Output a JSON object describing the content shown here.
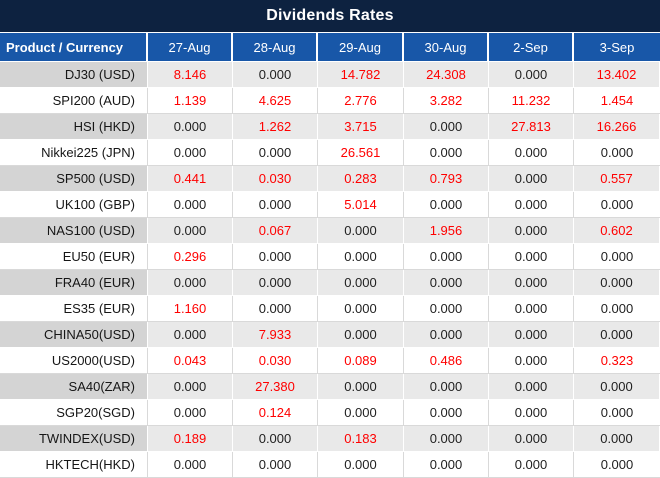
{
  "title": "Dividends Rates",
  "chart_data": {
    "type": "table",
    "title": "Dividends Rates",
    "columns": [
      "Product / Currency",
      "27-Aug",
      "28-Aug",
      "29-Aug",
      "30-Aug",
      "2-Sep",
      "3-Sep"
    ],
    "rows": [
      {
        "product": "DJ30 (USD)",
        "values": [
          "8.146",
          "0.000",
          "14.782",
          "24.308",
          "0.000",
          "13.402"
        ]
      },
      {
        "product": "SPI200 (AUD)",
        "values": [
          "1.139",
          "4.625",
          "2.776",
          "3.282",
          "11.232",
          "1.454"
        ]
      },
      {
        "product": "HSI (HKD)",
        "values": [
          "0.000",
          "1.262",
          "3.715",
          "0.000",
          "27.813",
          "16.266"
        ]
      },
      {
        "product": "Nikkei225 (JPN)",
        "values": [
          "0.000",
          "0.000",
          "26.561",
          "0.000",
          "0.000",
          "0.000"
        ]
      },
      {
        "product": "SP500 (USD)",
        "values": [
          "0.441",
          "0.030",
          "0.283",
          "0.793",
          "0.000",
          "0.557"
        ]
      },
      {
        "product": "UK100 (GBP)",
        "values": [
          "0.000",
          "0.000",
          "5.014",
          "0.000",
          "0.000",
          "0.000"
        ]
      },
      {
        "product": "NAS100 (USD)",
        "values": [
          "0.000",
          "0.067",
          "0.000",
          "1.956",
          "0.000",
          "0.602"
        ]
      },
      {
        "product": "EU50 (EUR)",
        "values": [
          "0.296",
          "0.000",
          "0.000",
          "0.000",
          "0.000",
          "0.000"
        ]
      },
      {
        "product": "FRA40 (EUR)",
        "values": [
          "0.000",
          "0.000",
          "0.000",
          "0.000",
          "0.000",
          "0.000"
        ]
      },
      {
        "product": "ES35 (EUR)",
        "values": [
          "1.160",
          "0.000",
          "0.000",
          "0.000",
          "0.000",
          "0.000"
        ]
      },
      {
        "product": "CHINA50(USD)",
        "values": [
          "0.000",
          "7.933",
          "0.000",
          "0.000",
          "0.000",
          "0.000"
        ]
      },
      {
        "product": "US2000(USD)",
        "values": [
          "0.043",
          "0.030",
          "0.089",
          "0.486",
          "0.000",
          "0.323"
        ]
      },
      {
        "product": "SA40(ZAR)",
        "values": [
          "0.000",
          "27.380",
          "0.000",
          "0.000",
          "0.000",
          "0.000"
        ]
      },
      {
        "product": "SGP20(SGD)",
        "values": [
          "0.000",
          "0.124",
          "0.000",
          "0.000",
          "0.000",
          "0.000"
        ]
      },
      {
        "product": "TWINDEX(USD)",
        "values": [
          "0.189",
          "0.000",
          "0.183",
          "0.000",
          "0.000",
          "0.000"
        ]
      },
      {
        "product": "HKTECH(HKD)",
        "values": [
          "0.000",
          "0.000",
          "0.000",
          "0.000",
          "0.000",
          "0.000"
        ]
      }
    ],
    "value_color_rule": "non-zero values rendered red, zero values black",
    "layout": {
      "alternate_row_shading": "odd rows gray, even rows white",
      "legend": "none",
      "grid": "on"
    }
  },
  "colors": {
    "title_bar": "#0d2240",
    "header_blue": "#1857a8",
    "alt_row_product": "#d4d4d4",
    "alt_row_data": "#e9e9e9",
    "grid_light": "#d9d9d9",
    "value_zero": "#1f1f1f",
    "value_nonzero": "#ff0000"
  }
}
